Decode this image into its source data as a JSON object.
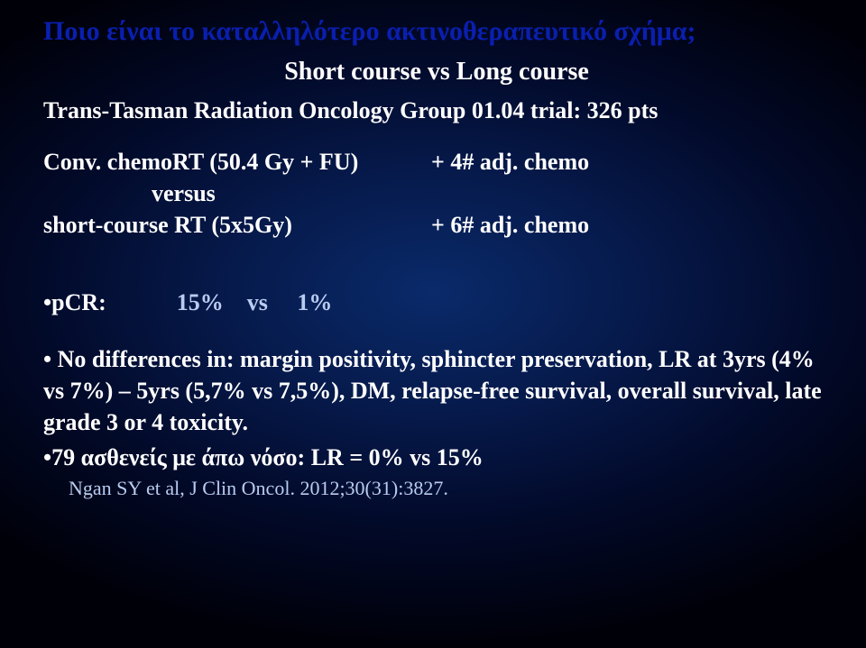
{
  "colors": {
    "title": "#0a1fb0",
    "body_text": "#ffffff",
    "accent_text": "#b9ccf0",
    "bg_center": "#0a2a6a",
    "bg_edge": "#000008"
  },
  "title": "Ποιο είναι το καταλληλότερο ακτινοθεραπευτικό σχήμα;",
  "subtitle": "Short course vs Long course",
  "trial_line": "Trans-Tasman Radiation Oncology Group 01.04 trial: 326 pts",
  "arms": {
    "row1_left": "Conv. chemoRT (50.4 Gy + FU)",
    "row1_right": "+ 4# adj. chemo",
    "versus": "versus",
    "row2_left": "short-course RT (5x5Gy)",
    "row2_right": "+ 6# adj. chemo"
  },
  "pcr": {
    "label": "•pCR:",
    "values": "            15%    vs     1%"
  },
  "outcomes_lines": [
    "• No differences in: margin positivity, sphincter preservation, LR at 3yrs (4% vs 7%) – 5yrs (5,7% vs 7,5%), DM, relapse-free survival, overall survival, late grade 3 or 4 toxicity."
  ],
  "lowrisk": "•79 ασθενείς με άπω νόσο: LR = 0% vs 15%",
  "citation": "Ngan SY et al, J Clin Oncol. 2012;30(31):3827."
}
